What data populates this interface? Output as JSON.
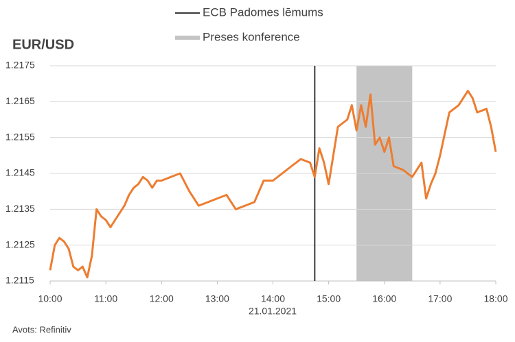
{
  "chart_data": {
    "type": "line",
    "title": "EUR/USD",
    "xlabel": "21.01.2021",
    "source": "Avots: Refinitiv",
    "xlim": [
      10,
      18
    ],
    "xticks": [
      {
        "value": 10,
        "label": "10:00"
      },
      {
        "value": 11,
        "label": "11:00"
      },
      {
        "value": 12,
        "label": "12:00"
      },
      {
        "value": 13,
        "label": "13:00"
      },
      {
        "value": 14,
        "label": "14:00"
      },
      {
        "value": 15,
        "label": "15:00"
      },
      {
        "value": 16,
        "label": "16:00"
      },
      {
        "value": 17,
        "label": "17:00"
      },
      {
        "value": 18,
        "label": "18:00"
      }
    ],
    "ylim": [
      1.2115,
      1.2175
    ],
    "yticks": [
      1.2115,
      1.2125,
      1.2135,
      1.2145,
      1.2155,
      1.2165,
      1.2175
    ],
    "grid": true,
    "markers": [
      {
        "label": "ECB Padomes lēmums",
        "color": "#3a3a3a",
        "x": 14.75
      }
    ],
    "spans": [
      {
        "label": "Preses konference",
        "color": "#c4c4c4",
        "x": [
          15.5,
          16.5
        ]
      }
    ],
    "series": [
      {
        "name": "EUR/USD",
        "color": "#ed7d31",
        "x": [
          10,
          10.0833,
          10.1667,
          10.25,
          10.3333,
          10.4167,
          10.5,
          10.5833,
          10.6667,
          10.75,
          10.8333,
          10.9167,
          11,
          11.0833,
          11.1667,
          11.25,
          11.3333,
          11.4167,
          11.5,
          11.5833,
          11.6667,
          11.75,
          11.8333,
          11.9167,
          12,
          12.1667,
          12.3333,
          12.5,
          12.6667,
          12.8333,
          13,
          13.1667,
          13.3333,
          13.5,
          13.6667,
          13.8333,
          14,
          14.1667,
          14.3333,
          14.5,
          14.6667,
          14.75,
          14.8333,
          14.9167,
          15,
          15.0833,
          15.1667,
          15.3333,
          15.4167,
          15.5,
          15.5833,
          15.6667,
          15.75,
          15.8333,
          15.9167,
          16,
          16.0833,
          16.1667,
          16.3333,
          16.5,
          16.6667,
          16.75,
          16.8333,
          16.9167,
          17,
          17.0833,
          17.1667,
          17.3333,
          17.5,
          17.5833,
          17.6667,
          17.8333,
          17.9167,
          18
        ],
        "values": [
          1.2118,
          1.2125,
          1.2127,
          1.2126,
          1.2124,
          1.2119,
          1.2118,
          1.2119,
          1.2116,
          1.2122,
          1.2135,
          1.2133,
          1.2132,
          1.213,
          1.2132,
          1.2134,
          1.2136,
          1.2139,
          1.2141,
          1.2142,
          1.2144,
          1.2143,
          1.2141,
          1.2143,
          1.2143,
          1.2144,
          1.2145,
          1.214,
          1.2136,
          1.2137,
          1.2138,
          1.2139,
          1.2135,
          1.2136,
          1.2137,
          1.2143,
          1.2143,
          1.2145,
          1.2147,
          1.2149,
          1.2148,
          1.2144,
          1.2152,
          1.2148,
          1.2142,
          1.215,
          1.2158,
          1.216,
          1.2164,
          1.2157,
          1.2164,
          1.2158,
          1.2167,
          1.2153,
          1.2155,
          1.2151,
          1.2155,
          1.2147,
          1.2146,
          1.2144,
          1.2148,
          1.2138,
          1.2142,
          1.2145,
          1.215,
          1.2156,
          1.2162,
          1.2164,
          1.2168,
          1.2166,
          1.2162,
          1.2163,
          1.2158,
          1.2151
        ]
      }
    ]
  }
}
